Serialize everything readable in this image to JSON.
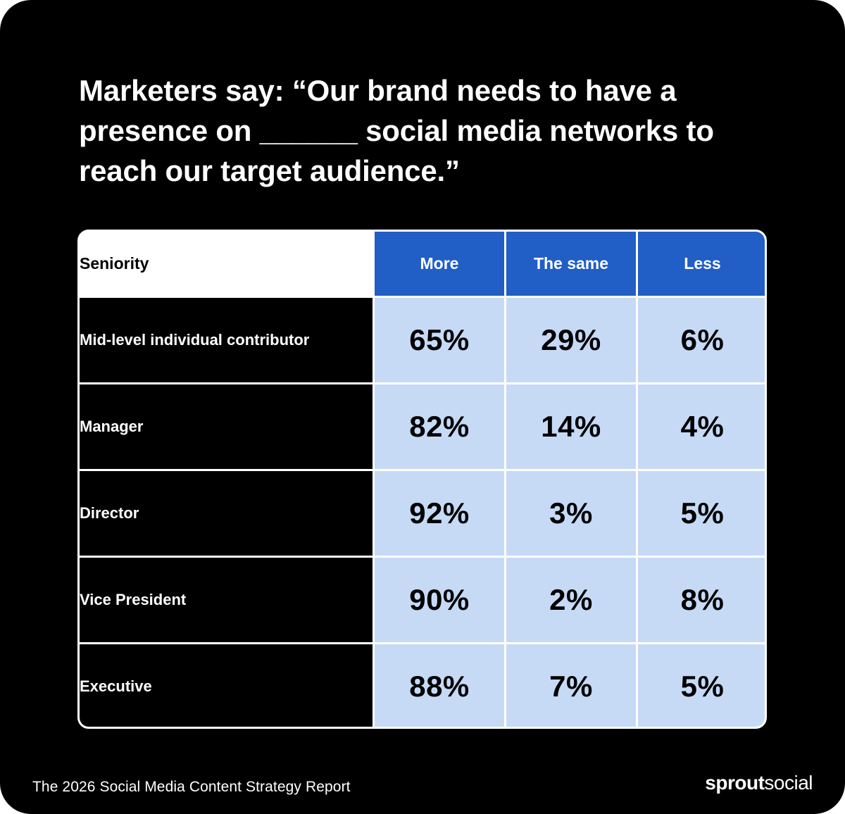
{
  "headline": "Marketers say: “Our brand needs to have a\npresence on ______ social media networks to\nreach our target audience.”",
  "footer": {
    "report_title": "The 2026 Social Media Content Strategy Report",
    "logo_bold": "sprout",
    "logo_light": "social"
  },
  "colors": {
    "background": "#000000",
    "header_blue": "#215ec6",
    "cell_light_blue": "#c6daf6",
    "text_light": "#ffffff",
    "text_dark": "#000000"
  },
  "chart_data": {
    "type": "table",
    "title": "Marketers say: “Our brand needs to have a presence on ______ social media networks to reach our target audience.”",
    "row_header": "Seniority",
    "columns": [
      "More",
      "The same",
      "Less"
    ],
    "rows": [
      {
        "label": "Mid-level individual contributor",
        "values": [
          "65%",
          "29%",
          "6%"
        ]
      },
      {
        "label": "Manager",
        "values": [
          "82%",
          "14%",
          "4%"
        ]
      },
      {
        "label": "Director",
        "values": [
          "92%",
          "3%",
          "5%"
        ]
      },
      {
        "label": "Vice President",
        "values": [
          "90%",
          "2%",
          "8%"
        ]
      },
      {
        "label": "Executive",
        "values": [
          "88%",
          "7%",
          "5%"
        ]
      }
    ]
  }
}
